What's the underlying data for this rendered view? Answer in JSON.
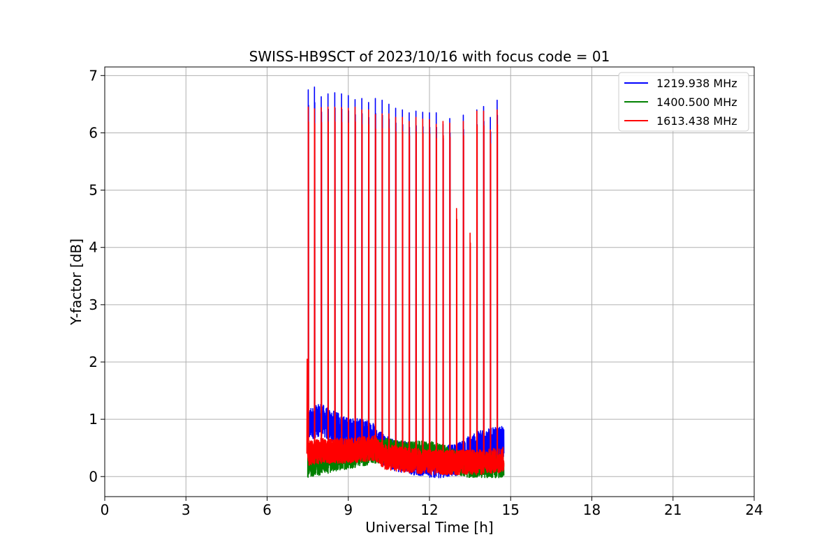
{
  "chart_data": {
    "type": "line",
    "title": "SWISS-HB9SCT of 2023/10/16 with focus code = 01",
    "xlabel": "Universal Time [h]",
    "ylabel": "Y-factor [dB]",
    "xlim": [
      0,
      24
    ],
    "ylim": [
      -0.35,
      7.15
    ],
    "x_ticks": [
      0,
      3,
      6,
      9,
      12,
      15,
      18,
      21,
      24
    ],
    "y_ticks": [
      0,
      1,
      2,
      3,
      4,
      5,
      6,
      7
    ],
    "grid": true,
    "legend_position": "top-right",
    "time_range": [
      7.5,
      14.75
    ],
    "series": [
      {
        "name": "1219.938 MHz",
        "color": "#0000ff",
        "baseline": [
          [
            7.5,
            0.9
          ],
          [
            8.0,
            1.0
          ],
          [
            8.3,
            0.9
          ],
          [
            9.0,
            0.75
          ],
          [
            9.9,
            0.7
          ],
          [
            10.1,
            0.55
          ],
          [
            10.5,
            0.4
          ],
          [
            11.5,
            0.3
          ],
          [
            12.3,
            0.25
          ],
          [
            13.0,
            0.3
          ],
          [
            13.5,
            0.45
          ],
          [
            14.0,
            0.55
          ],
          [
            14.75,
            0.6
          ]
        ],
        "noise": 0.28,
        "spikes": [
          [
            7.52,
            6.75
          ],
          [
            7.75,
            6.8
          ],
          [
            8.0,
            6.63
          ],
          [
            8.25,
            6.68
          ],
          [
            8.5,
            6.7
          ],
          [
            8.75,
            6.68
          ],
          [
            9.0,
            6.65
          ],
          [
            9.25,
            6.58
          ],
          [
            9.5,
            6.6
          ],
          [
            9.75,
            6.53
          ],
          [
            10.0,
            6.6
          ],
          [
            10.25,
            6.57
          ],
          [
            10.5,
            6.5
          ],
          [
            10.75,
            6.43
          ],
          [
            11.0,
            6.4
          ],
          [
            11.25,
            6.35
          ],
          [
            11.5,
            6.38
          ],
          [
            11.75,
            6.36
          ],
          [
            12.0,
            6.35
          ],
          [
            12.25,
            6.35
          ],
          [
            12.5,
            6.15
          ],
          [
            12.75,
            6.25
          ],
          [
            13.25,
            6.31
          ],
          [
            13.75,
            6.4
          ],
          [
            14.0,
            6.46
          ],
          [
            14.25,
            6.27
          ],
          [
            14.5,
            6.57
          ]
        ]
      },
      {
        "name": "1400.500 MHz",
        "color": "#008000",
        "baseline": [
          [
            7.5,
            0.2
          ],
          [
            8.0,
            0.25
          ],
          [
            9.0,
            0.35
          ],
          [
            9.5,
            0.4
          ],
          [
            10.0,
            0.45
          ],
          [
            10.5,
            0.45
          ],
          [
            11.0,
            0.4
          ],
          [
            11.5,
            0.4
          ],
          [
            12.0,
            0.4
          ],
          [
            12.5,
            0.35
          ],
          [
            13.0,
            0.25
          ],
          [
            13.5,
            0.2
          ],
          [
            14.0,
            0.2
          ],
          [
            14.75,
            0.2
          ]
        ],
        "noise": 0.22,
        "spikes": []
      },
      {
        "name": "1613.438 MHz",
        "color": "#ff0000",
        "baseline": [
          [
            7.5,
            0.4
          ],
          [
            8.0,
            0.45
          ],
          [
            9.0,
            0.45
          ],
          [
            10.0,
            0.5
          ],
          [
            10.3,
            0.35
          ],
          [
            11.0,
            0.3
          ],
          [
            12.0,
            0.25
          ],
          [
            13.0,
            0.25
          ],
          [
            14.0,
            0.25
          ],
          [
            14.75,
            0.3
          ]
        ],
        "noise": 0.22,
        "spikes": [
          [
            7.48,
            2.05
          ],
          [
            7.52,
            6.45
          ],
          [
            7.75,
            6.42
          ],
          [
            8.0,
            6.44
          ],
          [
            8.25,
            6.45
          ],
          [
            8.5,
            6.45
          ],
          [
            8.75,
            6.44
          ],
          [
            9.0,
            6.43
          ],
          [
            9.25,
            6.45
          ],
          [
            9.5,
            6.4
          ],
          [
            9.75,
            6.4
          ],
          [
            10.0,
            6.32
          ],
          [
            10.25,
            6.33
          ],
          [
            10.5,
            6.33
          ],
          [
            10.75,
            6.27
          ],
          [
            11.0,
            6.27
          ],
          [
            11.25,
            6.2
          ],
          [
            11.5,
            6.27
          ],
          [
            11.75,
            6.24
          ],
          [
            12.0,
            6.23
          ],
          [
            12.25,
            6.15
          ],
          [
            12.5,
            6.2
          ],
          [
            12.75,
            6.17
          ],
          [
            13.0,
            4.68
          ],
          [
            13.25,
            6.2
          ],
          [
            13.5,
            4.25
          ],
          [
            13.75,
            6.38
          ],
          [
            14.0,
            6.38
          ],
          [
            14.25,
            6.05
          ],
          [
            14.5,
            6.4
          ]
        ]
      }
    ]
  }
}
